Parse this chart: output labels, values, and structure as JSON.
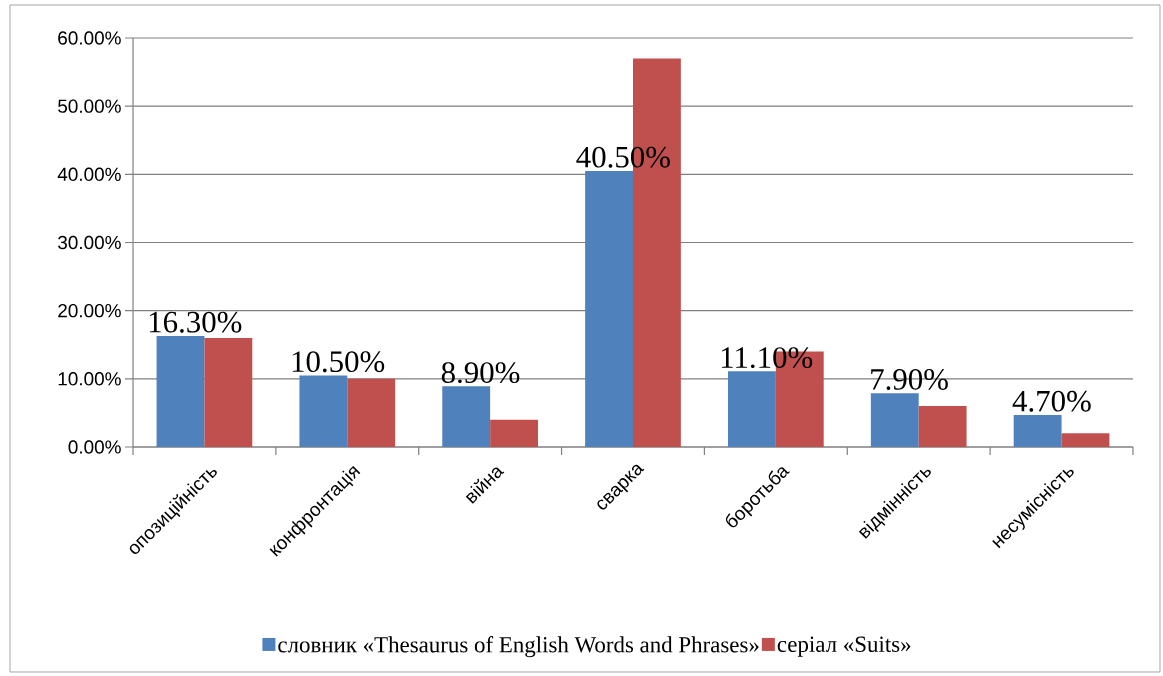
{
  "chart_data": {
    "type": "bar",
    "categories": [
      "опозиційність",
      "конфронтація",
      "війна",
      "сварка",
      "боротьба",
      "відмінність",
      "несумісність"
    ],
    "series": [
      {
        "name": "словник «Thesaurus of English Words and Phrases»",
        "color": "#4f81bd",
        "values": [
          16.3,
          10.5,
          8.9,
          40.5,
          11.1,
          7.9,
          4.7
        ],
        "value_labels": [
          "16.30%",
          "10.50%",
          "8.90%",
          "40.50%",
          "11.10%",
          "7.90%",
          "4.70%"
        ]
      },
      {
        "name": "серіал «Suits»",
        "color": "#c0504d",
        "values": [
          16,
          10,
          4,
          57,
          14,
          6,
          2
        ]
      }
    ],
    "ylim": [
      0,
      60
    ],
    "yticks": [
      {
        "value": 0,
        "label": "0.00%"
      },
      {
        "value": 10,
        "label": "10.00%"
      },
      {
        "value": 20,
        "label": "20.00%"
      },
      {
        "value": 30,
        "label": "30.00%"
      },
      {
        "value": 40,
        "label": "40.00%"
      },
      {
        "value": 50,
        "label": "50.00%"
      },
      {
        "value": 60,
        "label": "60.00%"
      }
    ],
    "grid": "y",
    "legend": "bottom"
  }
}
